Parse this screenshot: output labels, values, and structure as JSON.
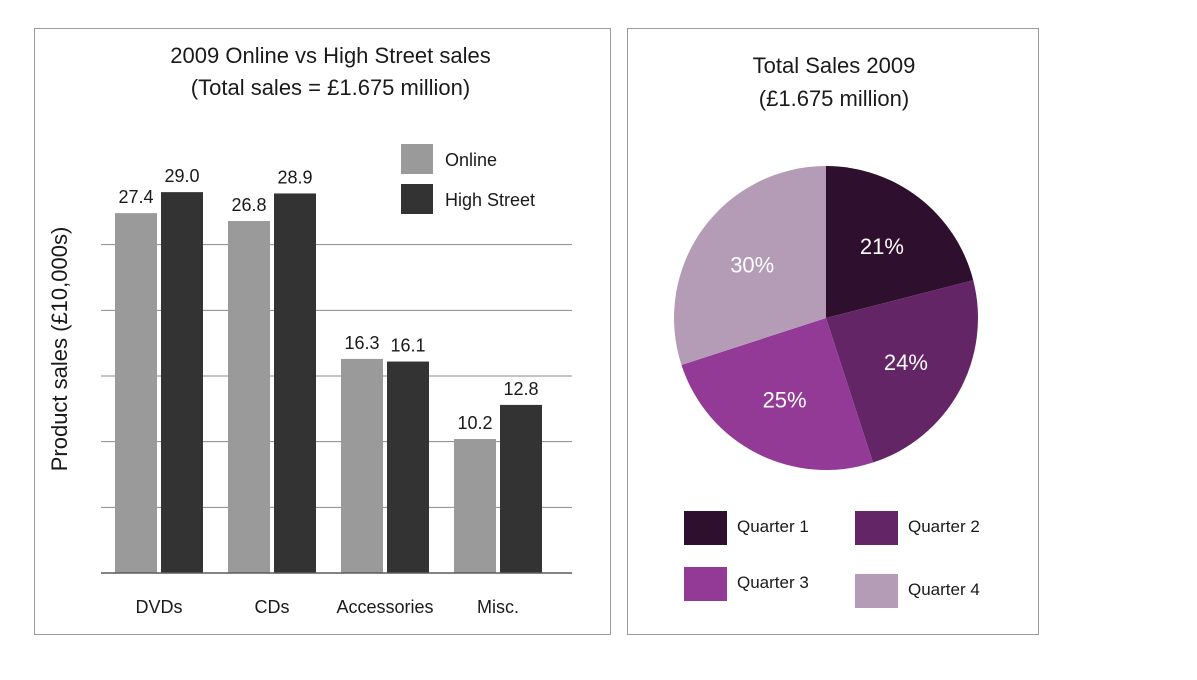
{
  "chart_data": [
    {
      "type": "bar",
      "title": "2009 Online vs High Street sales",
      "subtitle": "(Total sales = £1.675 million)",
      "ylabel": "Product sales (£10,000s)",
      "xlabel": "",
      "categories": [
        "DVDs",
        "CDs",
        "Accessories",
        "Misc."
      ],
      "series": [
        {
          "name": "Online",
          "values": [
            27.4,
            26.8,
            16.3,
            10.2
          ],
          "labels": [
            "27.4",
            "26.8",
            "16.3",
            "10.2"
          ],
          "color": "#9a9a9a"
        },
        {
          "name": "High Street",
          "values": [
            29.0,
            28.9,
            16.1,
            12.8
          ],
          "labels": [
            "29.0",
            "28.9",
            "16.1",
            "12.8"
          ],
          "color": "#333333"
        }
      ],
      "ylim": [
        0,
        30
      ],
      "gridlines": [
        5,
        10,
        15,
        20,
        25
      ],
      "grid": true,
      "legend": "top-right"
    },
    {
      "type": "pie",
      "title": "Total Sales 2009",
      "subtitle": "(£1.675 million)",
      "slices": [
        {
          "name": "Quarter 1",
          "value": 21,
          "label": "21%",
          "color": "#2e0f2e"
        },
        {
          "name": "Quarter 2",
          "value": 24,
          "label": "24%",
          "color": "#642566"
        },
        {
          "name": "Quarter 3",
          "value": 25,
          "label": "25%",
          "color": "#933a96"
        },
        {
          "name": "Quarter 4",
          "value": 30,
          "label": "30%",
          "color": "#b49cb7"
        }
      ],
      "label_color": "#ffffff",
      "legend": "bottom"
    }
  ]
}
